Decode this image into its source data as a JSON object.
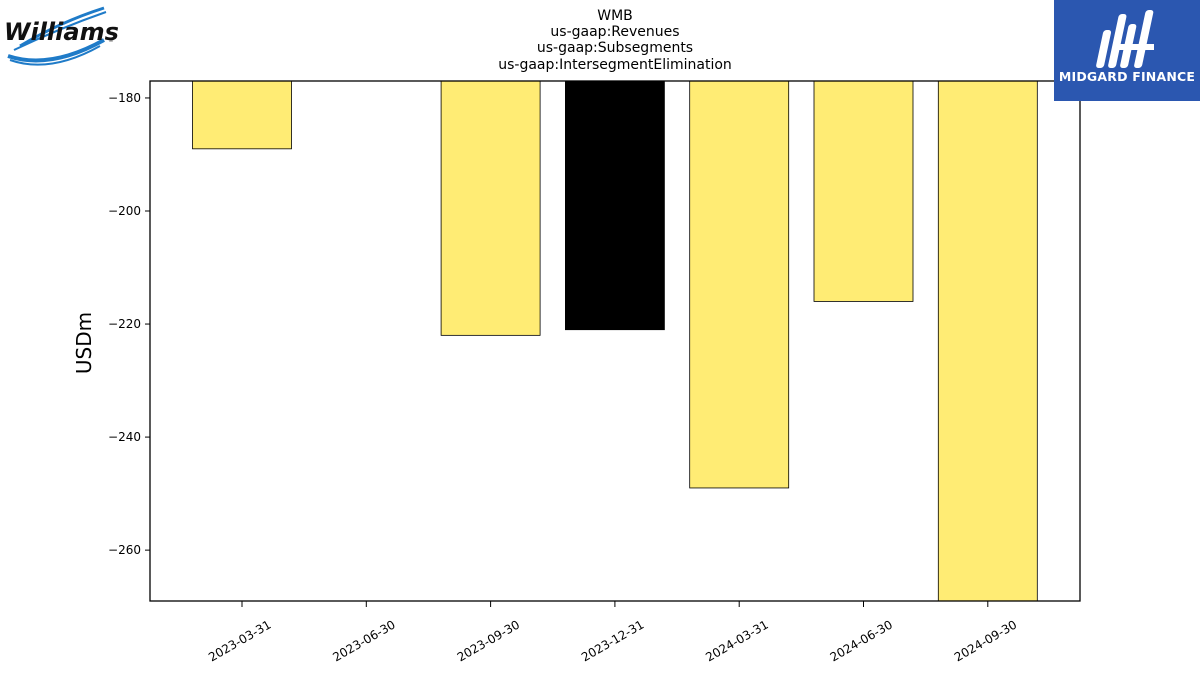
{
  "logos": {
    "left_brand": "Williams",
    "right_brand": "MIDGARD FINANCE"
  },
  "colors": {
    "bar_default": "#ffec74",
    "bar_highlight": "#000000",
    "logo_right_bg": "#2b57b0",
    "logo_left_blue": "#1f7bc8"
  },
  "chart_data": {
    "type": "bar",
    "title_lines": [
      "WMB",
      "us-gaap:Revenues",
      "us-gaap:Subsegments",
      "us-gaap:IntersegmentElimination"
    ],
    "xlabel": "",
    "ylabel": "USDm",
    "categories": [
      "2023-03-31",
      "2023-06-30",
      "2023-09-30",
      "2023-12-31",
      "2024-03-31",
      "2024-06-30",
      "2024-09-30"
    ],
    "values": [
      -189,
      null,
      -222,
      -221,
      -249,
      -216,
      -269
    ],
    "highlight_index": 3,
    "ylim": [
      -269,
      -177
    ],
    "yticks": [
      -180,
      -200,
      -220,
      -240,
      -260
    ],
    "grid": false,
    "legend": "none"
  }
}
